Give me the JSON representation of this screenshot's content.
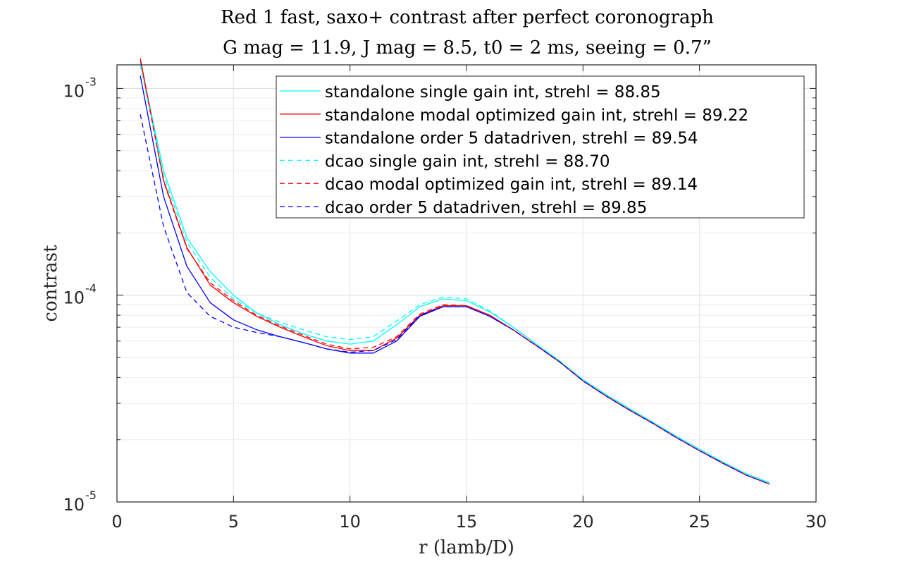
{
  "chart_data": {
    "type": "line",
    "title": "Red 1 fast, saxo+ contrast after perfect coronograph",
    "subtitle": "G mag = 11.9, J mag = 8.5, t0 = 2 ms, seeing = 0.7”",
    "xlabel": "r (lamb/D)",
    "ylabel": "contrast",
    "xlim": [
      0,
      30
    ],
    "ylim": [
      1e-05,
      0.0013
    ],
    "yscale": "log",
    "grid": true,
    "legend_position": "top-right",
    "x_ticks": [
      {
        "value": 0,
        "label": "0"
      },
      {
        "value": 5,
        "label": "5"
      },
      {
        "value": 10,
        "label": "10"
      },
      {
        "value": 15,
        "label": "15"
      },
      {
        "value": 20,
        "label": "20"
      },
      {
        "value": 25,
        "label": "25"
      },
      {
        "value": 30,
        "label": "30"
      }
    ],
    "y_ticks": [
      {
        "value": 1e-05,
        "base": "10",
        "exp": "-5"
      },
      {
        "value": 0.0001,
        "base": "10",
        "exp": "-4"
      },
      {
        "value": 0.001,
        "base": "10",
        "exp": "-3"
      }
    ],
    "x": [
      1,
      2,
      3,
      4,
      5,
      6,
      7,
      8,
      9,
      10,
      11,
      12,
      13,
      14,
      15,
      16,
      17,
      18,
      19,
      20,
      21,
      22,
      23,
      24,
      25,
      26,
      27,
      28
    ],
    "series": [
      {
        "name": "standalone single gain int, strehl = 88.85",
        "color": "#00ffff",
        "dash": "solid",
        "values": [
          0.00135,
          0.0004,
          0.00019,
          0.00013,
          0.0001,
          8.2e-05,
          7.2e-05,
          6.5e-05,
          6e-05,
          5.8e-05,
          6e-05,
          7.2e-05,
          8.8e-05,
          9.6e-05,
          9.4e-05,
          8.3e-05,
          7e-05,
          5.8e-05,
          4.8e-05,
          3.9e-05,
          3.3e-05,
          2.82e-05,
          2.43e-05,
          2.08e-05,
          1.8e-05,
          1.56e-05,
          1.37e-05,
          1.24e-05
        ]
      },
      {
        "name": "standalone modal optimized gain int, strehl = 89.22",
        "color": "#ff0000",
        "dash": "solid",
        "values": [
          0.0014,
          0.00036,
          0.00017,
          0.000112,
          9.2e-05,
          7.9e-05,
          7e-05,
          6.3e-05,
          5.7e-05,
          5.4e-05,
          5.4e-05,
          6.2e-05,
          8e-05,
          8.9e-05,
          8.9e-05,
          8e-05,
          6.8e-05,
          5.7e-05,
          4.75e-05,
          3.85e-05,
          3.25e-05,
          2.78e-05,
          2.4e-05,
          2.05e-05,
          1.77e-05,
          1.54e-05,
          1.35e-05,
          1.22e-05
        ]
      },
      {
        "name": "standalone order 5 datadriven, strehl = 89.54",
        "color": "#0000ff",
        "dash": "solid",
        "values": [
          0.00115,
          0.0003,
          0.000138,
          9.2e-05,
          7.6e-05,
          6.8e-05,
          6.3e-05,
          5.9e-05,
          5.5e-05,
          5.25e-05,
          5.25e-05,
          6e-05,
          7.9e-05,
          8.8e-05,
          8.8e-05,
          7.9e-05,
          6.8e-05,
          5.7e-05,
          4.75e-05,
          3.85e-05,
          3.25e-05,
          2.78e-05,
          2.4e-05,
          2.05e-05,
          1.77e-05,
          1.54e-05,
          1.35e-05,
          1.22e-05
        ]
      },
      {
        "name": "dcao single gain int, strehl = 88.70",
        "color": "#00ffff",
        "dash": "dashed",
        "values": [
          0.0013,
          0.00038,
          0.00018,
          0.000122,
          9.6e-05,
          8.2e-05,
          7.4e-05,
          6.8e-05,
          6.3e-05,
          6.1e-05,
          6.3e-05,
          7.5e-05,
          9e-05,
          9.8e-05,
          9.6e-05,
          8.4e-05,
          7e-05,
          5.8e-05,
          4.8e-05,
          3.9e-05,
          3.3e-05,
          2.82e-05,
          2.43e-05,
          2.08e-05,
          1.8e-05,
          1.56e-05,
          1.37e-05,
          1.23e-05
        ]
      },
      {
        "name": "dcao modal optimized gain int, strehl = 89.14",
        "color": "#ff0000",
        "dash": "dashed",
        "values": [
          0.00138,
          0.000355,
          0.000168,
          0.000115,
          9.4e-05,
          8e-05,
          7.1e-05,
          6.4e-05,
          5.8e-05,
          5.5e-05,
          5.6e-05,
          6.3e-05,
          8.1e-05,
          9e-05,
          8.9e-05,
          8e-05,
          6.8e-05,
          5.7e-05,
          4.75e-05,
          3.85e-05,
          3.25e-05,
          2.78e-05,
          2.4e-05,
          2.05e-05,
          1.77e-05,
          1.54e-05,
          1.35e-05,
          1.22e-05
        ]
      },
      {
        "name": "dcao order 5 datadriven, strehl = 89.85",
        "color": "#0000ff",
        "dash": "dashed",
        "values": [
          0.00075,
          0.000215,
          0.000103,
          7.9e-05,
          7e-05,
          6.6e-05,
          6.3e-05,
          5.9e-05,
          5.5e-05,
          5.3e-05,
          5.4e-05,
          6.1e-05,
          8e-05,
          8.8e-05,
          8.8e-05,
          7.9e-05,
          6.8e-05,
          5.7e-05,
          4.75e-05,
          3.85e-05,
          3.25e-05,
          2.78e-05,
          2.4e-05,
          2.05e-05,
          1.77e-05,
          1.54e-05,
          1.35e-05,
          1.22e-05
        ]
      }
    ]
  }
}
